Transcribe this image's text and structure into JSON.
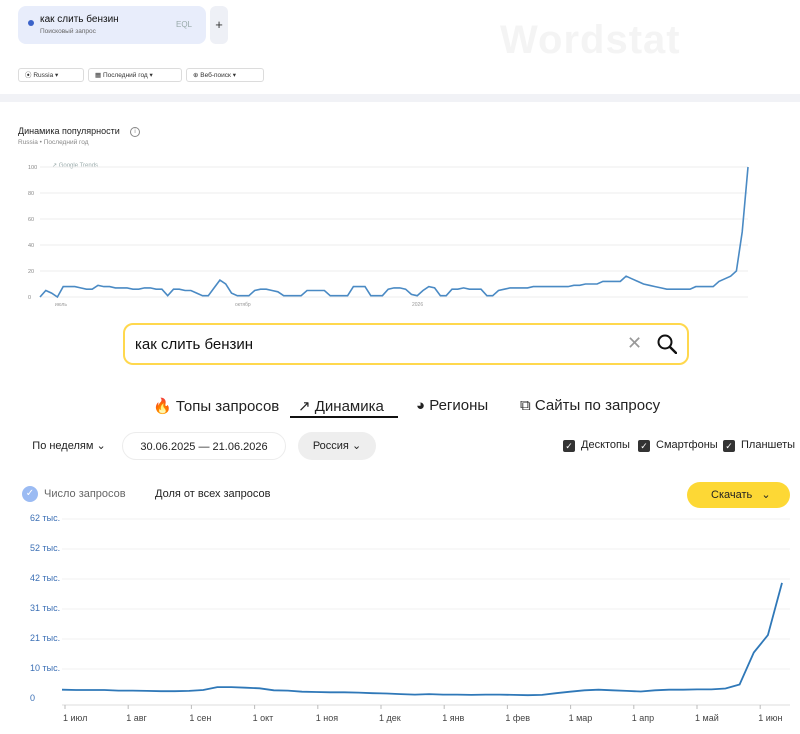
{
  "chip": {
    "query": "как слить бензин",
    "subtitle": "Поисковый запрос",
    "eq_icon": "ЕQL"
  },
  "plus": "+",
  "watermark": "Wordstat",
  "filters_top": {
    "region": "Russia",
    "period": "Последний год",
    "type": "Веб-поиск"
  },
  "trends_chart": {
    "title": "Динамика популярности",
    "subtitle": "Russia • Последний год",
    "legend": "Google Trends",
    "yticks": [
      "100",
      "80",
      "60",
      "40",
      "20",
      "0"
    ],
    "xticks": [
      "июль",
      "октябр",
      "2026"
    ]
  },
  "search": {
    "query": "как слить бензин"
  },
  "tabs": [
    "Топы запросов",
    "Динамика",
    "Регионы",
    "Сайты по запросу"
  ],
  "controls": {
    "period": "По неделям",
    "dates": "30.06.2025 — 21.06.2026",
    "region": "Россия"
  },
  "devices": [
    "Десктопы",
    "Смартфоны",
    "Планшеты"
  ],
  "metrics": {
    "count": "Число запросов",
    "share": "Доля от всех запросов",
    "download": "Скачать"
  },
  "wordstat_chart": {
    "yticks": [
      "62 тыс.",
      "52 тыс.",
      "42 тыс.",
      "31 тыс.",
      "21 тыс.",
      "10 тыс.",
      "0"
    ],
    "xticks": [
      "1 июл",
      "1 авг",
      "1 сен",
      "1 окт",
      "1 ноя",
      "1 дек",
      "1 янв",
      "1 фев",
      "1 мар",
      "1 апр",
      "1 май",
      "1 июн"
    ]
  },
  "chart_data": [
    {
      "type": "line",
      "title": "Динамика популярности",
      "ylim": [
        0,
        100
      ],
      "values": [
        0,
        5,
        3,
        0,
        8,
        8,
        8,
        7,
        6,
        6,
        9,
        8,
        8,
        7,
        7,
        7,
        6,
        6,
        7,
        7,
        6,
        6,
        1,
        6,
        6,
        5,
        5,
        3,
        1,
        1,
        7,
        13,
        10,
        3,
        1,
        1,
        1,
        5,
        6,
        6,
        5,
        4,
        1,
        1,
        1,
        1,
        5,
        5,
        5,
        5,
        1,
        1,
        1,
        1,
        8,
        8,
        8,
        1,
        1,
        1,
        6,
        7,
        7,
        6,
        2,
        1,
        5,
        8,
        7,
        1,
        1,
        6,
        6,
        7,
        6,
        6,
        6,
        1,
        1,
        5,
        6,
        7,
        7,
        7,
        7,
        8,
        8,
        8,
        8,
        8,
        8,
        8,
        9,
        9,
        10,
        10,
        10,
        12,
        12,
        12,
        12,
        16,
        14,
        12,
        10,
        9,
        8,
        7,
        6,
        6,
        6,
        6,
        6,
        8,
        8,
        8,
        8,
        12,
        14,
        16,
        20,
        50,
        100
      ]
    },
    {
      "type": "line",
      "ylim": [
        0,
        62000
      ],
      "values": [
        3200,
        3100,
        3100,
        3100,
        2900,
        2900,
        2800,
        2700,
        2700,
        2800,
        3100,
        4100,
        4100,
        3900,
        3700,
        3000,
        2900,
        2500,
        2400,
        2300,
        2300,
        2200,
        2000,
        1900,
        1700,
        1500,
        1700,
        1500,
        1500,
        1400,
        1500,
        1500,
        1400,
        1300,
        1400,
        2000,
        2500,
        3000,
        3200,
        3000,
        2800,
        2600,
        3000,
        3200,
        3200,
        3300,
        3300,
        3600,
        5000,
        16000,
        22000,
        40000
      ]
    }
  ]
}
